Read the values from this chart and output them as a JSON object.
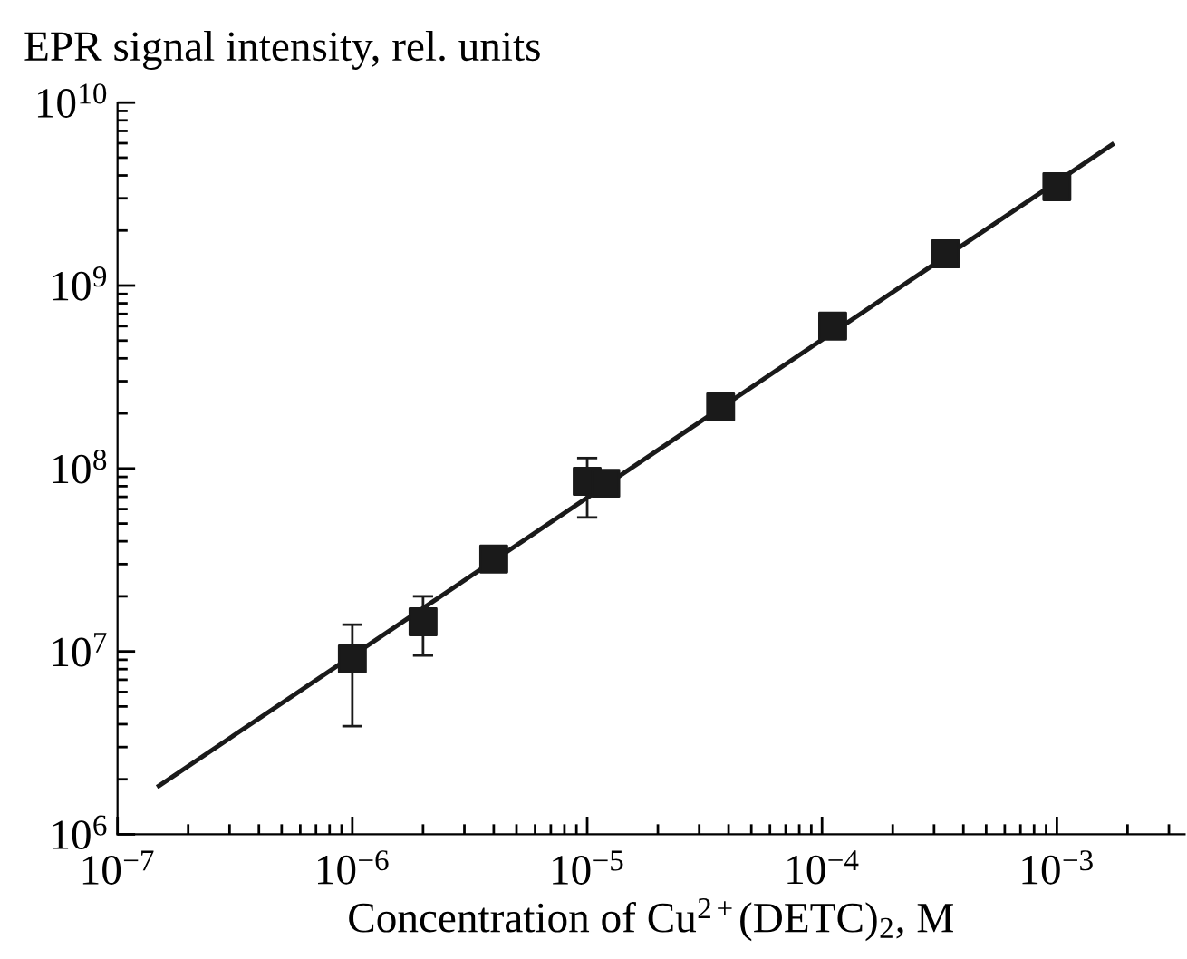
{
  "chart_data": {
    "type": "scatter",
    "xlabel": "Concentration of Cu$^{2+}$(DETC)$_{2}$, M",
    "ylabel": "EPR signal intensity, rel. units",
    "log": "xy",
    "grid": false,
    "legend": false,
    "marker": "square",
    "xlim": [
      1e-07,
      0.0035
    ],
    "ylim": [
      1000000.0,
      10000000000.0
    ],
    "xticks": [
      {
        "value": 1e-07,
        "label": "10$^{−7}$"
      },
      {
        "value": 1e-06,
        "label": "10$^{−6}$"
      },
      {
        "value": 1e-05,
        "label": "10$^{−5}$"
      },
      {
        "value": 0.0001,
        "label": "10$^{−4}$"
      },
      {
        "value": 0.001,
        "label": "10$^{−3}$"
      }
    ],
    "yticks": [
      {
        "value": 1000000.0,
        "label": "10$^{6}$"
      },
      {
        "value": 10000000.0,
        "label": "10$^{7}$"
      },
      {
        "value": 100000000.0,
        "label": "10$^{8}$"
      },
      {
        "value": 1000000000.0,
        "label": "10$^{9}$"
      },
      {
        "value": 10000000000.0,
        "label": "10$^{10}$"
      }
    ],
    "series": [
      {
        "color": "#1a1a1a",
        "x": [
          1e-06,
          2e-06,
          4e-06,
          1e-05,
          1.2e-05,
          3.7e-05,
          0.000111,
          0.000336,
          0.001
        ],
        "values": [
          9100000.0,
          14500000.0,
          32000000.0,
          85000000.0,
          83000000.0,
          217000000.0,
          600000000.0,
          1490000000.0,
          3470000000.0
        ],
        "errors": [
          [
            3900000.0,
            14000000.0
          ],
          [
            9500000.0,
            20000000.0
          ],
          null,
          [
            54000000.0,
            114000000.0
          ],
          null,
          null,
          null,
          null,
          null
        ]
      },
      {
        "type": "line",
        "color": "#1a1a1a",
        "line_style": "solid",
        "marker": "none",
        "x": [
          1.5e-07,
          0.00172
        ],
        "values": [
          1840000.0,
          5900000000.0
        ]
      }
    ]
  }
}
